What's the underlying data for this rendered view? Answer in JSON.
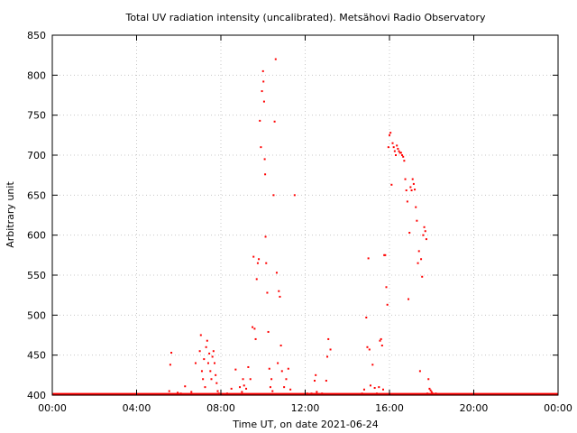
{
  "chart_data": {
    "type": "scatter",
    "title": "Total UV radiation intensity (uncalibrated). Metsähovi Radio Observatory",
    "xlabel": "Time UT, on date 2021-06-24",
    "ylabel": "Arbitrary unit",
    "x_unit": "hours UT",
    "xlim": [
      0,
      24
    ],
    "ylim": [
      400,
      850
    ],
    "x_ticks": [
      {
        "value": 0,
        "label": "00:00"
      },
      {
        "value": 4,
        "label": "04:00"
      },
      {
        "value": 8,
        "label": "08:00"
      },
      {
        "value": 12,
        "label": "12:00"
      },
      {
        "value": 16,
        "label": "16:00"
      },
      {
        "value": 20,
        "label": "20:00"
      },
      {
        "value": 24,
        "label": "00:00"
      }
    ],
    "y_ticks": [
      400,
      450,
      500,
      550,
      600,
      650,
      700,
      750,
      800,
      850
    ],
    "grid": true,
    "marker_color": "#ff0000",
    "series": [
      {
        "baseline": 401,
        "x": [
          5.55,
          5.6,
          5.65,
          5.95,
          6.1,
          6.3,
          6.6,
          6.8,
          7.0,
          7.05,
          7.1,
          7.15,
          7.2,
          7.25,
          7.3,
          7.35,
          7.4,
          7.45,
          7.5,
          7.55,
          7.6,
          7.65,
          7.7,
          7.75,
          7.8,
          7.85,
          7.9,
          7.95,
          8.3,
          8.5,
          8.7,
          8.9,
          9.0,
          9.05,
          9.1,
          9.2,
          9.3,
          9.4,
          9.5,
          9.55,
          9.6,
          9.65,
          9.7,
          9.75,
          9.8,
          9.85,
          9.9,
          9.95,
          10.0,
          10.02,
          10.05,
          10.08,
          10.1,
          10.12,
          10.15,
          10.2,
          10.25,
          10.3,
          10.35,
          10.4,
          10.45,
          10.5,
          10.55,
          10.6,
          10.65,
          10.7,
          10.75,
          10.8,
          10.85,
          10.9,
          11.0,
          11.1,
          11.2,
          11.3,
          11.5,
          11.8,
          12.1,
          12.3,
          12.45,
          12.5,
          12.55,
          12.8,
          13.0,
          13.05,
          13.1,
          13.2,
          14.7,
          14.8,
          14.9,
          14.95,
          15.0,
          15.05,
          15.1,
          15.2,
          15.3,
          15.4,
          15.5,
          15.55,
          15.6,
          15.65,
          15.7,
          15.75,
          15.8,
          15.85,
          15.9,
          15.95,
          16.0,
          16.05,
          16.1,
          16.15,
          16.2,
          16.25,
          16.3,
          16.35,
          16.4,
          16.45,
          16.5,
          16.55,
          16.6,
          16.65,
          16.7,
          16.75,
          16.8,
          16.85,
          16.9,
          16.95,
          17.0,
          17.05,
          17.1,
          17.15,
          17.2,
          17.25,
          17.3,
          17.35,
          17.4,
          17.45,
          17.5,
          17.55,
          17.6,
          17.65,
          17.7,
          17.75,
          17.8,
          17.85,
          17.9,
          17.95,
          18.0,
          18.05,
          18.1,
          18.2
        ],
        "y": [
          405,
          438,
          453,
          403,
          402,
          411,
          404,
          440,
          455,
          475,
          430,
          420,
          445,
          410,
          460,
          468,
          440,
          452,
          430,
          420,
          448,
          455,
          440,
          425,
          415,
          405,
          402,
          401,
          402,
          408,
          432,
          410,
          404,
          420,
          412,
          408,
          435,
          420,
          485,
          573,
          483,
          470,
          545,
          565,
          570,
          743,
          710,
          780,
          805,
          792,
          767,
          695,
          676,
          598,
          565,
          528,
          479,
          433,
          410,
          420,
          405,
          650,
          742,
          820,
          553,
          440,
          530,
          523,
          462,
          430,
          410,
          420,
          433,
          407,
          650,
          401,
          402,
          402,
          418,
          425,
          404,
          402,
          418,
          448,
          470,
          457,
          402,
          407,
          497,
          460,
          571,
          457,
          412,
          438,
          409,
          402,
          410,
          468,
          470,
          462,
          407,
          575,
          575,
          535,
          513,
          710,
          725,
          728,
          663,
          715,
          710,
          705,
          700,
          712,
          708,
          705,
          703,
          703,
          700,
          698,
          693,
          670,
          656,
          642,
          520,
          603,
          660,
          656,
          670,
          664,
          657,
          635,
          618,
          565,
          580,
          430,
          570,
          548,
          600,
          610,
          605,
          595,
          402,
          420,
          408,
          406,
          404,
          402,
          401,
          402
        ]
      }
    ]
  }
}
